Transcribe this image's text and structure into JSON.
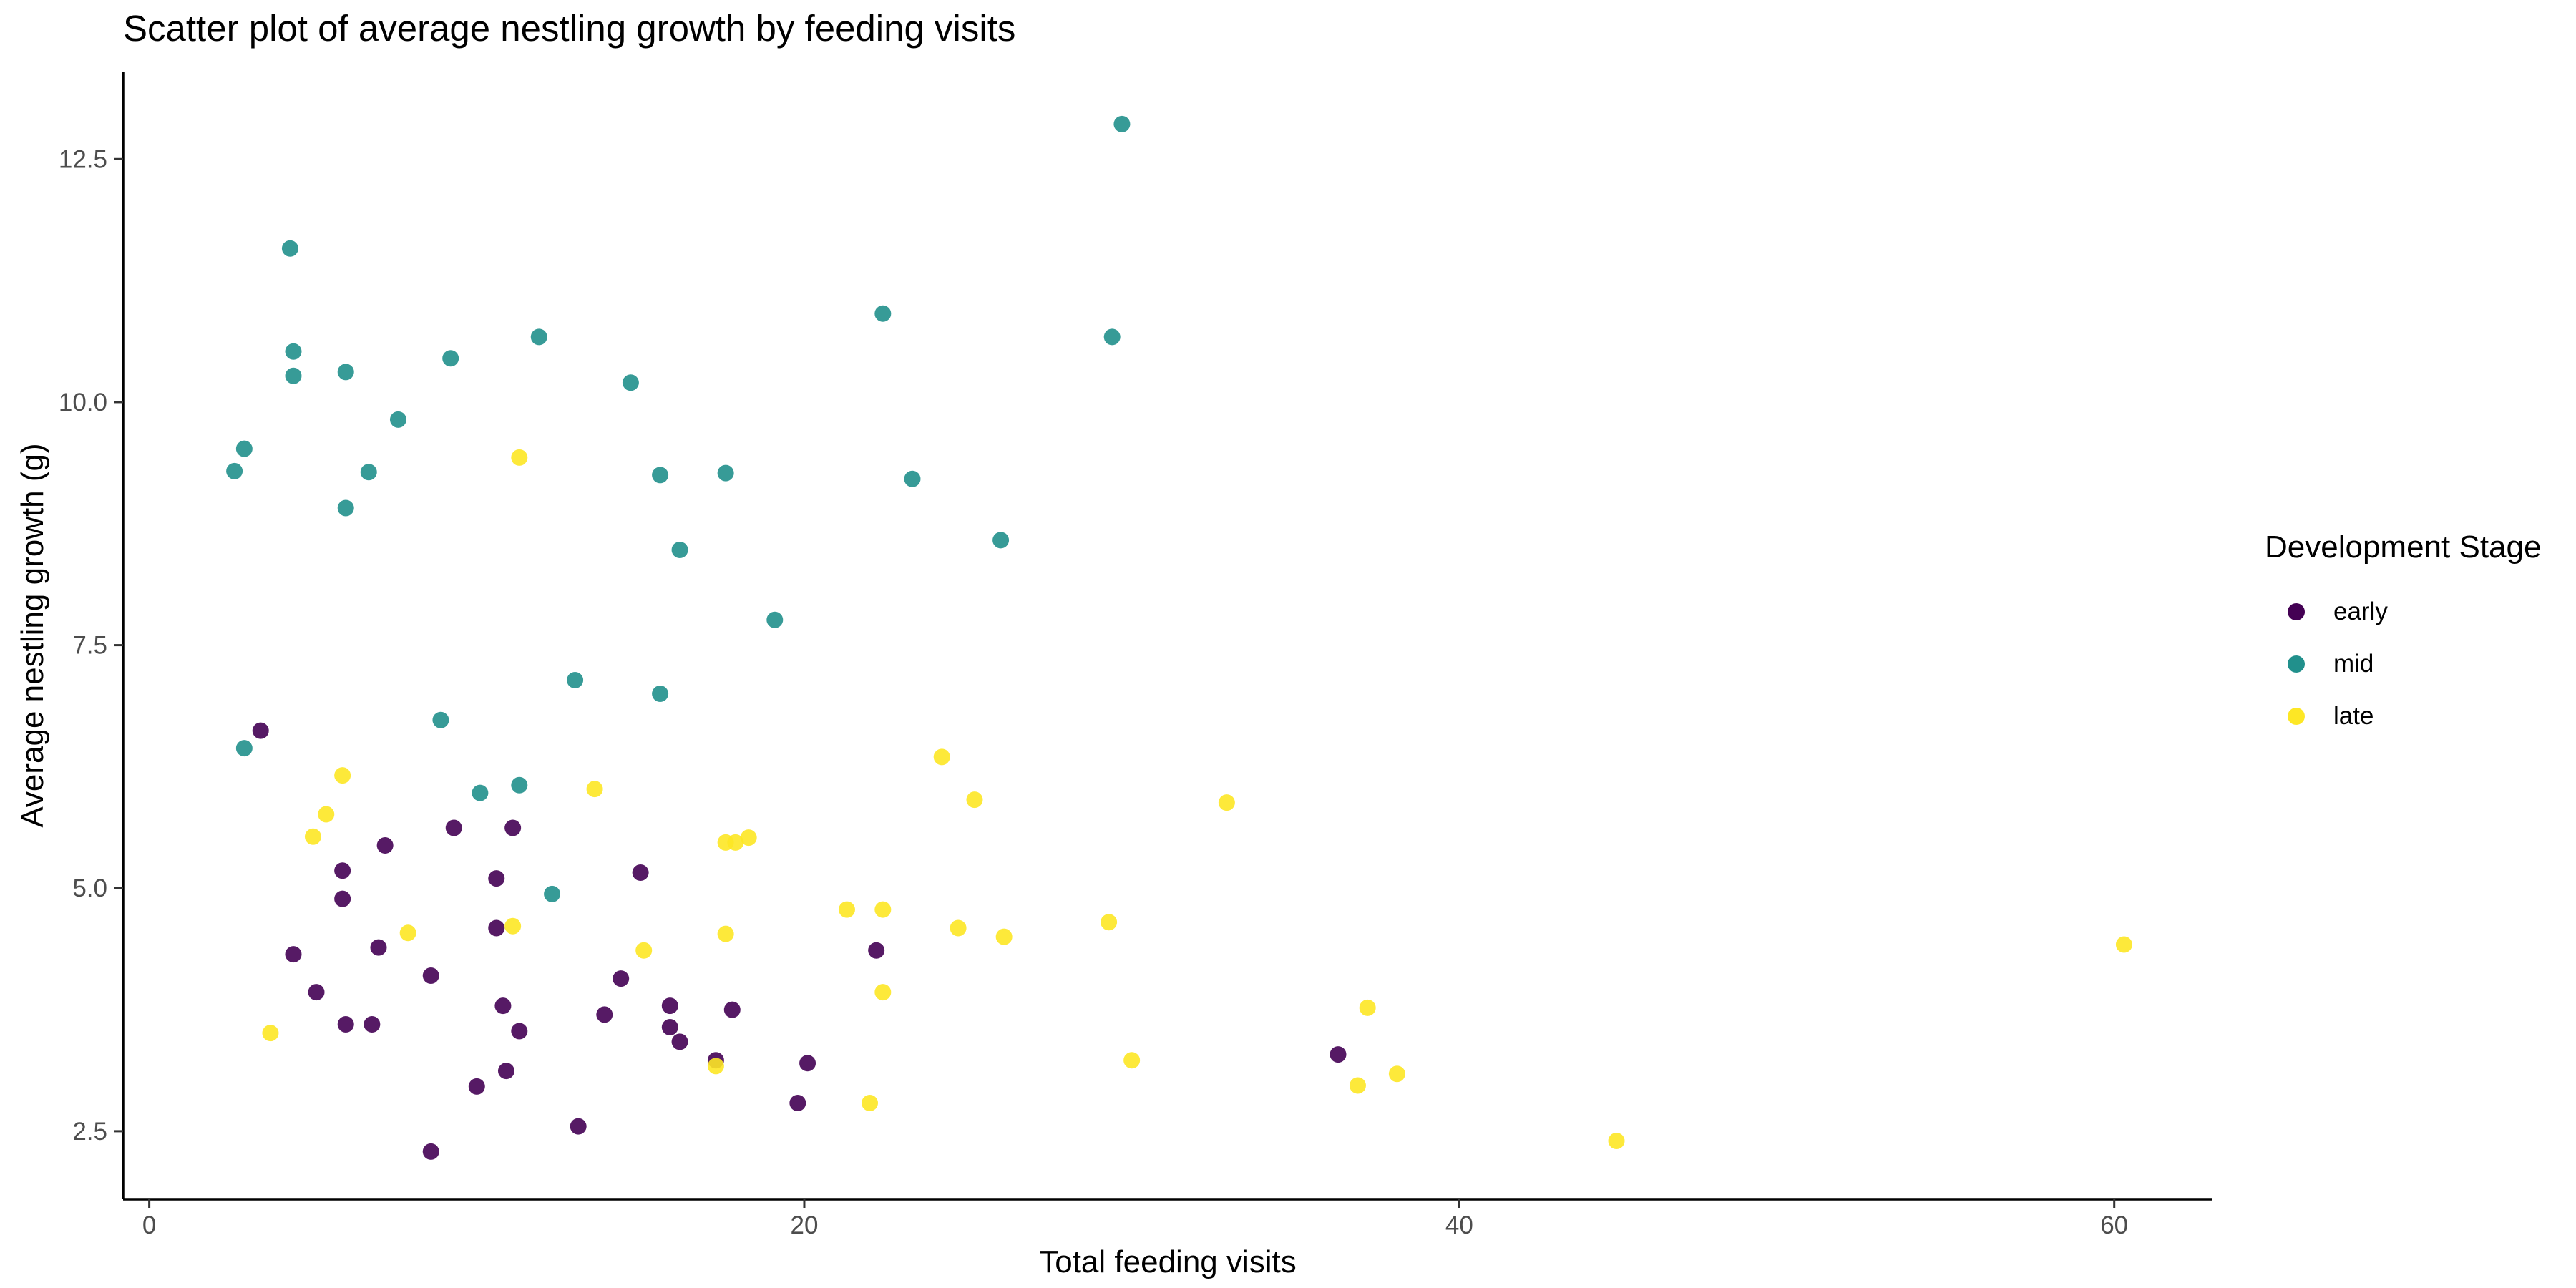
{
  "chart_data": {
    "type": "scatter",
    "title": "Scatter plot of average nestling growth by feeding visits",
    "xlabel": "Total feeding visits",
    "ylabel": "Average nestling growth (g)",
    "xlim": [
      -0.8,
      63
    ],
    "ylim": [
      1.8,
      13.4
    ],
    "xticks": [
      0,
      20,
      40,
      60
    ],
    "yticks": [
      2.5,
      5.0,
      7.5,
      10.0,
      12.5
    ],
    "ytick_labels": [
      "2.5",
      "5.0",
      "7.5",
      "10.0",
      "12.5"
    ],
    "grid": false,
    "legend": {
      "title": "Development Stage",
      "position": "right"
    },
    "series": [
      {
        "name": "early",
        "color": "#440154",
        "points": [
          [
            3.4,
            6.62
          ],
          [
            4.4,
            4.32
          ],
          [
            5.1,
            3.93
          ],
          [
            5.9,
            5.18
          ],
          [
            5.9,
            4.89
          ],
          [
            6.0,
            3.6
          ],
          [
            7.0,
            4.39
          ],
          [
            6.8,
            3.6
          ],
          [
            7.2,
            5.44
          ],
          [
            8.6,
            4.1
          ],
          [
            8.6,
            2.29
          ],
          [
            9.3,
            5.62
          ],
          [
            10.0,
            2.96
          ],
          [
            10.6,
            5.1
          ],
          [
            10.6,
            4.59
          ],
          [
            10.8,
            3.79
          ],
          [
            10.9,
            3.12
          ],
          [
            11.1,
            5.62
          ],
          [
            11.3,
            3.53
          ],
          [
            13.1,
            2.55
          ],
          [
            13.9,
            3.7
          ],
          [
            14.4,
            4.07
          ],
          [
            15.0,
            5.16
          ],
          [
            15.9,
            3.79
          ],
          [
            15.9,
            3.57
          ],
          [
            16.2,
            3.42
          ],
          [
            17.3,
            3.23
          ],
          [
            17.8,
            3.75
          ],
          [
            19.8,
            2.79
          ],
          [
            20.1,
            3.2
          ],
          [
            22.2,
            4.36
          ],
          [
            36.3,
            3.29
          ]
        ]
      },
      {
        "name": "mid",
        "color": "#21908C",
        "points": [
          [
            2.6,
            9.29
          ],
          [
            2.9,
            9.52
          ],
          [
            2.9,
            6.44
          ],
          [
            4.3,
            11.58
          ],
          [
            4.4,
            10.52
          ],
          [
            4.4,
            10.27
          ],
          [
            6.0,
            10.31
          ],
          [
            6.0,
            8.91
          ],
          [
            6.7,
            9.28
          ],
          [
            7.6,
            9.82
          ],
          [
            8.9,
            6.73
          ],
          [
            9.2,
            10.45
          ],
          [
            10.1,
            5.98
          ],
          [
            11.3,
            6.06
          ],
          [
            11.9,
            10.67
          ],
          [
            12.3,
            4.94
          ],
          [
            13.0,
            7.14
          ],
          [
            14.7,
            10.2
          ],
          [
            15.6,
            9.25
          ],
          [
            15.6,
            7.0
          ],
          [
            16.2,
            8.48
          ],
          [
            17.6,
            9.27
          ],
          [
            19.1,
            7.76
          ],
          [
            22.4,
            10.91
          ],
          [
            23.3,
            9.21
          ],
          [
            26.0,
            8.58
          ],
          [
            29.4,
            10.67
          ],
          [
            29.7,
            12.86
          ]
        ]
      },
      {
        "name": "late",
        "color": "#FDE725",
        "points": [
          [
            3.7,
            3.51
          ],
          [
            5.0,
            5.53
          ],
          [
            5.4,
            5.76
          ],
          [
            5.9,
            6.16
          ],
          [
            7.9,
            4.54
          ],
          [
            11.1,
            4.61
          ],
          [
            11.3,
            9.43
          ],
          [
            13.6,
            6.02
          ],
          [
            15.1,
            4.36
          ],
          [
            17.3,
            3.17
          ],
          [
            17.6,
            5.47
          ],
          [
            17.6,
            4.53
          ],
          [
            17.9,
            5.47
          ],
          [
            18.3,
            5.52
          ],
          [
            21.3,
            4.78
          ],
          [
            22.0,
            2.79
          ],
          [
            22.4,
            4.78
          ],
          [
            22.4,
            3.93
          ],
          [
            24.2,
            6.35
          ],
          [
            24.7,
            4.59
          ],
          [
            25.2,
            5.91
          ],
          [
            26.1,
            4.5
          ],
          [
            29.3,
            4.65
          ],
          [
            30.0,
            3.23
          ],
          [
            32.9,
            5.88
          ],
          [
            36.9,
            2.97
          ],
          [
            37.2,
            3.77
          ],
          [
            38.1,
            3.09
          ],
          [
            44.8,
            2.4
          ],
          [
            60.3,
            4.42
          ]
        ]
      }
    ]
  }
}
